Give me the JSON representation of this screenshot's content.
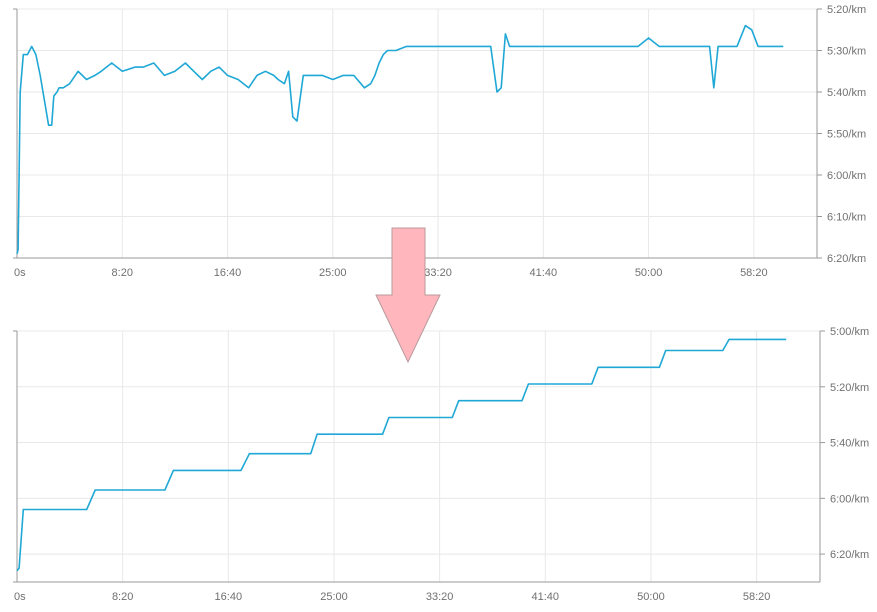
{
  "colors": {
    "line": "#1fa8d6",
    "grid": "#e8e8e8",
    "axis": "#9a9a9a",
    "arrow_fill": "#ffb6bd",
    "arrow_stroke": "#b8999c",
    "text": "#707070"
  },
  "chart_data": [
    {
      "type": "line",
      "name": "top",
      "x_unit": "seconds",
      "xlim": [
        0,
        3800
      ],
      "ylim_sec_per_km": [
        320,
        380
      ],
      "y_axis_reversed": true,
      "x_ticks": [
        {
          "value": 0,
          "label": "0s"
        },
        {
          "value": 500,
          "label": "8:20"
        },
        {
          "value": 1000,
          "label": "16:40"
        },
        {
          "value": 1500,
          "label": "25:00"
        },
        {
          "value": 2000,
          "label": "33:20"
        },
        {
          "value": 2500,
          "label": "41:40"
        },
        {
          "value": 3000,
          "label": "50:00"
        },
        {
          "value": 3500,
          "label": "58:20"
        }
      ],
      "y_ticks": [
        {
          "value": 320,
          "label": "5:20/km"
        },
        {
          "value": 330,
          "label": "5:30/km"
        },
        {
          "value": 340,
          "label": "5:40/km"
        },
        {
          "value": 350,
          "label": "5:50/km"
        },
        {
          "value": 360,
          "label": "6:00/km"
        },
        {
          "value": 370,
          "label": "6:10/km"
        },
        {
          "value": 380,
          "label": "6:20/km"
        }
      ],
      "series": [
        {
          "x": [
            0,
            5,
            15,
            30,
            50,
            70,
            90,
            110,
            130,
            150,
            165,
            175,
            190,
            200,
            220,
            250,
            290,
            330,
            370,
            400,
            450,
            500,
            560,
            600,
            650,
            700,
            750,
            800,
            840,
            880,
            920,
            960,
            1000,
            1050,
            1100,
            1140,
            1180,
            1220,
            1240,
            1270,
            1290,
            1310,
            1330,
            1360,
            1400,
            1450,
            1500,
            1550,
            1600,
            1650,
            1680,
            1700,
            1720,
            1740,
            1760,
            1800,
            1850,
            1900,
            1950,
            2000,
            2050,
            2100,
            2150,
            2200,
            2250,
            2280,
            2300,
            2320,
            2340,
            2370,
            2400,
            2450,
            2500,
            2550,
            2600,
            2650,
            2700,
            2750,
            2800,
            2850,
            2900,
            2950,
            3000,
            3050,
            3100,
            3150,
            3200,
            3250,
            3290,
            3310,
            3330,
            3350,
            3380,
            3420,
            3460,
            3490,
            3520,
            3560,
            3600,
            3640
          ],
          "y": [
            379,
            378,
            340,
            331,
            331,
            329,
            331,
            336,
            342,
            348,
            348,
            341,
            340,
            339,
            339,
            338,
            335,
            337,
            336,
            335,
            333,
            335,
            334,
            334,
            333,
            336,
            335,
            333,
            335,
            337,
            335,
            334,
            336,
            337,
            339,
            336,
            335,
            336,
            337,
            338,
            335,
            346,
            347,
            336,
            336,
            336,
            337,
            336,
            336,
            339,
            338,
            336,
            333,
            331,
            330,
            330,
            329,
            329,
            329,
            329,
            329,
            329,
            329,
            329,
            329,
            340,
            339,
            326,
            329,
            329,
            329,
            329,
            329,
            329,
            329,
            329,
            329,
            329,
            329,
            329,
            329,
            329,
            327,
            329,
            329,
            329,
            329,
            329,
            329,
            339,
            329,
            329,
            329,
            329,
            324,
            325,
            329,
            329,
            329,
            329
          ]
        }
      ]
    },
    {
      "type": "line",
      "name": "bottom",
      "x_unit": "seconds",
      "xlim": [
        0,
        3800
      ],
      "ylim_sec_per_km": [
        300,
        390
      ],
      "y_axis_reversed": true,
      "x_ticks": [
        {
          "value": 0,
          "label": "0s"
        },
        {
          "value": 500,
          "label": "8:20"
        },
        {
          "value": 1000,
          "label": "16:40"
        },
        {
          "value": 1500,
          "label": "25:00"
        },
        {
          "value": 2000,
          "label": "33:20"
        },
        {
          "value": 2500,
          "label": "41:40"
        },
        {
          "value": 3000,
          "label": "50:00"
        },
        {
          "value": 3500,
          "label": "58:20"
        }
      ],
      "y_ticks": [
        {
          "value": 300,
          "label": "5:00/km"
        },
        {
          "value": 320,
          "label": "5:20/km"
        },
        {
          "value": 340,
          "label": "5:40/km"
        },
        {
          "value": 360,
          "label": "6:00/km"
        },
        {
          "value": 380,
          "label": "6:20/km"
        }
      ],
      "series": [
        {
          "x": [
            0,
            10,
            30,
            330,
            370,
            700,
            740,
            1060,
            1100,
            1390,
            1420,
            1730,
            1760,
            2060,
            2090,
            2390,
            2420,
            2720,
            2750,
            3040,
            3070,
            3340,
            3370,
            3640
          ],
          "y": [
            386,
            385,
            364,
            364,
            357,
            357,
            350,
            350,
            344,
            344,
            337,
            337,
            331,
            331,
            325,
            325,
            319,
            319,
            313,
            313,
            307,
            307,
            303,
            303
          ]
        }
      ]
    }
  ]
}
